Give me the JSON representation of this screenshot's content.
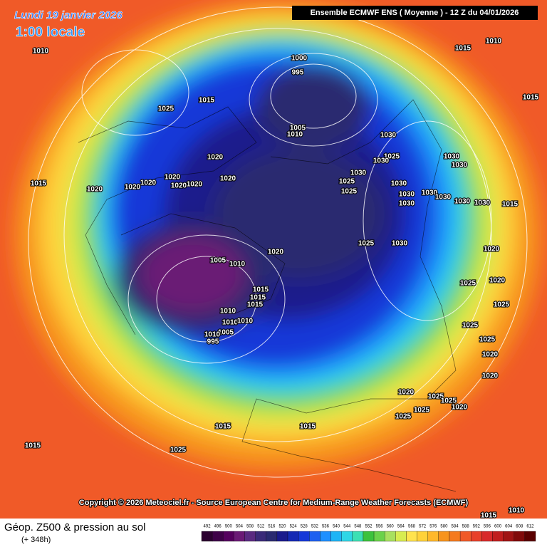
{
  "header": {
    "date": "Lundi 19 janvier 2026",
    "time": "1:00 locale",
    "run": "Ensemble ECMWF ENS  ( Moyenne )  -  12 Z du 04/01/2026"
  },
  "footer": {
    "copyright": "Copyright © 2026 Meteociel.fr - Source European Centre for Medium-Range Weather Forecasts (ECMWF)",
    "field": "Géop. Z500 & pression au sol",
    "lead": "(+ 348h)"
  },
  "scale": {
    "values": [
      492,
      496,
      500,
      504,
      508,
      512,
      516,
      520,
      524,
      528,
      532,
      536,
      540,
      544,
      548,
      552,
      556,
      560,
      564,
      568,
      572,
      576,
      580,
      584,
      588,
      592,
      596,
      600,
      604,
      608,
      612
    ],
    "colors": [
      "#2b0030",
      "#3e0048",
      "#55005e",
      "#6b1a75",
      "#5a2a80",
      "#3a2a78",
      "#2a2a70",
      "#1a1a8c",
      "#1428b4",
      "#1538d8",
      "#1e60f0",
      "#1e90ff",
      "#1eb4f5",
      "#2fd6e6",
      "#3ce0b4",
      "#3cc23c",
      "#6ad24a",
      "#a8e05f",
      "#d8ec50",
      "#ffe34d",
      "#ffd23a",
      "#ffb82a",
      "#f7941d",
      "#f57a1e",
      "#f05a28",
      "#e8402a",
      "#d82a2a",
      "#c01e1e",
      "#a01414",
      "#800a0a",
      "#5a0000"
    ]
  },
  "isobars": [
    "1010",
    "1015",
    "1010",
    "1000",
    "995",
    "1025",
    "1015",
    "1015",
    "1005",
    "1010",
    "1020",
    "1020",
    "1020",
    "1020",
    "1020",
    "1020",
    "1020",
    "1015",
    "1020",
    "1030",
    "1025",
    "1030",
    "1030",
    "1030",
    "1030",
    "1025",
    "1025",
    "1030",
    "1030",
    "1030",
    "1030",
    "1030",
    "1030",
    "1030",
    "1015",
    "1020",
    "1025",
    "1030",
    "1005",
    "1010",
    "1015",
    "1015",
    "1015",
    "1010",
    "1010",
    "1010",
    "1005",
    "1010",
    "995",
    "1020",
    "1020",
    "1025",
    "1025",
    "1025",
    "1025",
    "1020",
    "1020",
    "1020",
    "1025",
    "1025",
    "1020",
    "1025",
    "1025",
    "1015",
    "1015",
    "1015",
    "1025",
    "1010",
    "1015"
  ]
}
